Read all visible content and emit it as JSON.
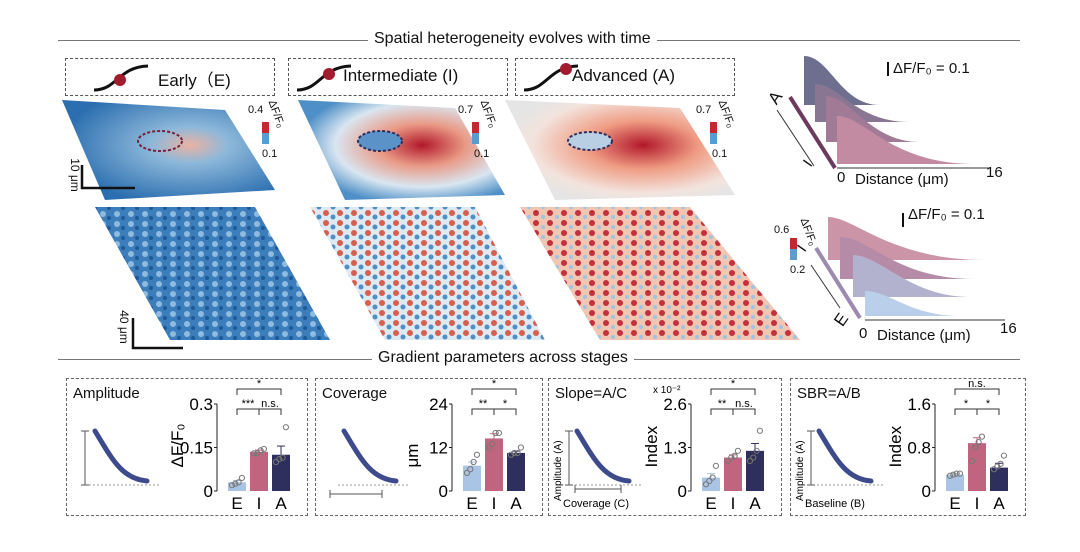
{
  "titles": {
    "top": "Spatial heterogeneity evolves with time",
    "bottom": "Gradient parameters across stages"
  },
  "stages": [
    {
      "label": "Early（E)"
    },
    {
      "label": "Intermediate (I)"
    },
    {
      "label": "Advanced (A)"
    }
  ],
  "colorbars": {
    "top": [
      {
        "max": "0.4",
        "min": "0.1",
        "unit": "ΔF/F₀"
      },
      {
        "max": "0.7",
        "min": "0.1",
        "unit": "ΔF/F₀"
      },
      {
        "max": "0.7",
        "min": "0.1",
        "unit": "ΔF/F₀"
      }
    ],
    "bottom": {
      "max": "0.6",
      "min": "0.2",
      "unit": "ΔF/F₀"
    }
  },
  "scalebars": {
    "top": "10 μm",
    "bottom": "40 μm"
  },
  "profiles": [
    {
      "scale": "ΔF/F₀ = 0.1",
      "from": "I",
      "to": "A",
      "x_start": "0",
      "x_label": "Distance (μm)",
      "x_end": "16"
    },
    {
      "scale": "ΔF/F₀ = 0.1",
      "from": "E",
      "to": "I",
      "x_start": "0",
      "x_label": "Distance (μm)",
      "x_end": "16"
    }
  ],
  "colors": {
    "E": "#a9c4e4",
    "I": "#c0647f",
    "A": "#2e2f5c",
    "red": "#b2182b",
    "blue": "#2166ac"
  },
  "chart_data": [
    {
      "type": "bar",
      "title": "Amplitude",
      "ylabel": "ΔF/F₀",
      "ylim": [
        0,
        0.3
      ],
      "yticks": [
        "0",
        "0.15",
        "0.3"
      ],
      "multiplier": "",
      "categories": [
        "E",
        "I",
        "A"
      ],
      "values": [
        0.03,
        0.135,
        0.125
      ],
      "errors": [
        0.006,
        0.006,
        0.03
      ],
      "points": [
        [
          0.02,
          0.025,
          0.03,
          0.045
        ],
        [
          0.13,
          0.13,
          0.14,
          0.145
        ],
        [
          0.1,
          0.11,
          0.115,
          0.22
        ]
      ],
      "sig": {
        "EI": "***",
        "IA": "n.s.",
        "EA": "*"
      },
      "schematic": {
        "x": "",
        "y": ""
      }
    },
    {
      "type": "bar",
      "title": "Coverage",
      "ylabel": "μm",
      "ylim": [
        0,
        24
      ],
      "yticks": [
        "0",
        "12",
        "24"
      ],
      "multiplier": "",
      "categories": [
        "E",
        "I",
        "A"
      ],
      "values": [
        7,
        14.5,
        10.5
      ],
      "errors": [
        1,
        1.3,
        0.5
      ],
      "points": [
        [
          5,
          6,
          8,
          10
        ],
        [
          12,
          13,
          16,
          16
        ],
        [
          10,
          10.5,
          10.5,
          12
        ]
      ],
      "sig": {
        "EI": "**",
        "IA": "*",
        "EA": "*"
      },
      "schematic": {
        "x": "",
        "y": ""
      }
    },
    {
      "type": "bar",
      "title": "Slope=A/C",
      "ylabel": "Index",
      "ylim": [
        0,
        2.6
      ],
      "yticks": [
        "0",
        "1.3",
        "2.6"
      ],
      "multiplier": "x 10⁻²",
      "categories": [
        "E",
        "I",
        "A"
      ],
      "values": [
        0.4,
        1.0,
        1.2
      ],
      "errors": [
        0.12,
        0.08,
        0.22
      ],
      "points": [
        [
          0.2,
          0.3,
          0.4,
          0.75
        ],
        [
          0.9,
          1.0,
          1.05,
          1.2
        ],
        [
          0.9,
          1.0,
          1.2,
          1.8
        ]
      ],
      "sig": {
        "EI": "**",
        "IA": "n.s.",
        "EA": "*"
      },
      "schematic": {
        "x": "Coverage (C)",
        "y": "Amplitude (A)"
      }
    },
    {
      "type": "bar",
      "title": "SBR=A/B",
      "ylabel": "Index",
      "ylim": [
        0,
        1.6
      ],
      "yticks": [
        "0",
        "0.8",
        "1.6"
      ],
      "multiplier": "",
      "categories": [
        "E",
        "I",
        "A"
      ],
      "values": [
        0.3,
        0.88,
        0.43
      ],
      "errors": [
        0.02,
        0.1,
        0.08
      ],
      "points": [
        [
          0.28,
          0.3,
          0.32,
          0.32
        ],
        [
          0.55,
          0.8,
          0.9,
          1.0
        ],
        [
          0.4,
          0.45,
          0.5,
          0.65
        ]
      ],
      "sig": {
        "EI": "*",
        "IA": "*",
        "EA": "n.s."
      },
      "schematic": {
        "x": "Baseline (B)",
        "y": "Amplitude (A)"
      }
    }
  ]
}
